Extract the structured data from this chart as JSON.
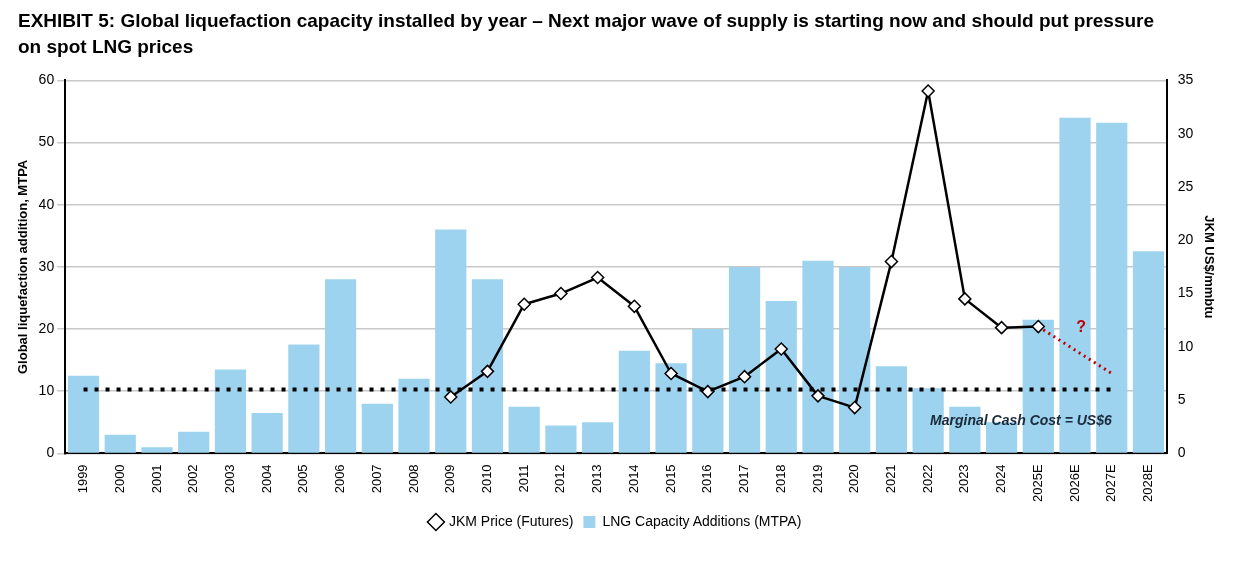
{
  "chart_data": {
    "type": "bar",
    "title": "EXHIBIT 5: Global liquefaction capacity installed by year – Next major wave of supply is starting now and should put pressure on spot LNG prices",
    "ylabel": "Global liquefaction addition, MTPA",
    "y2label": "JKM US$/mmbtu",
    "categories": [
      "1999",
      "2000",
      "2001",
      "2002",
      "2003",
      "2004",
      "2005",
      "2006",
      "2007",
      "2008",
      "2009",
      "2010",
      "2011",
      "2012",
      "2013",
      "2014",
      "2015",
      "2016",
      "2017",
      "2018",
      "2019",
      "2020",
      "2021",
      "2022",
      "2023",
      "2024",
      "2025E",
      "2026E",
      "2027E",
      "2028E"
    ],
    "series": [
      {
        "name": "LNG Capacity Additions (MTPA)",
        "color": "#9dd3ef",
        "values": [
          12.5,
          3,
          1,
          3.5,
          13.5,
          6.5,
          17.5,
          28,
          8,
          12,
          36,
          28,
          7.5,
          4.5,
          5,
          16.5,
          14.5,
          20,
          30,
          24.5,
          31,
          30,
          14,
          10.5,
          7.5,
          5,
          21.5,
          54,
          53.2,
          32.5
        ]
      },
      {
        "name": "JKM Price (Futures)",
        "type": "line",
        "axis": "y2",
        "color": "#000000",
        "marker": "diamond",
        "line_style": "solid",
        "values": [
          null,
          null,
          null,
          null,
          null,
          null,
          null,
          null,
          null,
          null,
          5.3,
          7.7,
          14,
          15,
          16.5,
          13.8,
          7.5,
          5.8,
          7.2,
          9.8,
          5.4,
          4.3,
          18,
          34,
          14.5,
          11.8,
          11.9,
          null,
          null,
          null
        ]
      },
      {
        "type": "line",
        "axis": "y2",
        "color": "#c00000",
        "marker": "none",
        "line_style": "dotted",
        "values": [
          null,
          null,
          null,
          null,
          null,
          null,
          null,
          null,
          null,
          null,
          null,
          null,
          null,
          null,
          null,
          null,
          null,
          null,
          null,
          null,
          null,
          null,
          null,
          null,
          null,
          null,
          11.9,
          null,
          7.5,
          null
        ]
      }
    ],
    "ylim": [
      0,
      60
    ],
    "yticks": [
      0,
      10,
      20,
      30,
      40,
      50,
      60
    ],
    "y2lim": [
      0,
      35
    ],
    "y2ticks": [
      0,
      5,
      10,
      15,
      20,
      25,
      30,
      35
    ],
    "ref_lines": [
      {
        "axis": "y2",
        "value": 6,
        "label": "Marginal Cash Cost = US$6",
        "color": "#000000",
        "line_style": "dotted"
      }
    ],
    "annotations": [
      "?"
    ],
    "grid": "y",
    "legend": "bottom"
  }
}
